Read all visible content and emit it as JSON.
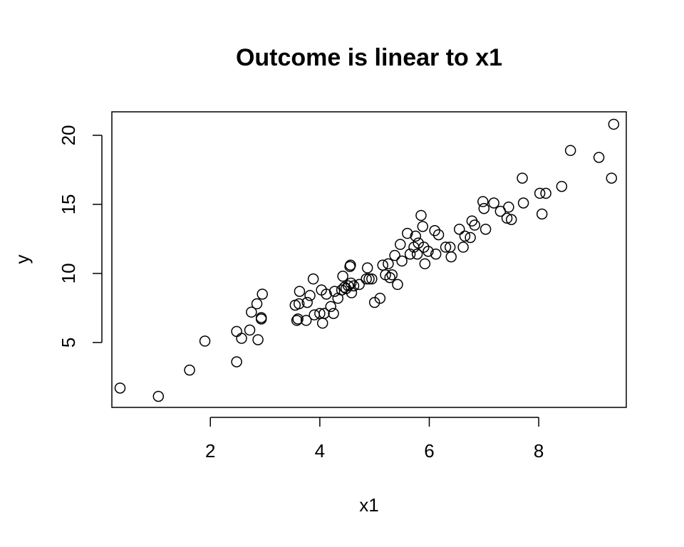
{
  "chart_data": {
    "type": "scatter",
    "title": "Outcome is linear to x1",
    "xlabel": "x1",
    "ylabel": "y",
    "xlim": [
      0.2,
      9.6
    ],
    "ylim": [
      0.3,
      21.7
    ],
    "xticks": [
      2,
      4,
      6,
      8
    ],
    "yticks": [
      5,
      10,
      15,
      20
    ],
    "marker": "open-circle",
    "grid": false,
    "points": [
      [
        0.35,
        1.7
      ],
      [
        1.05,
        1.1
      ],
      [
        1.62,
        3.0
      ],
      [
        1.9,
        5.1
      ],
      [
        2.48,
        5.8
      ],
      [
        2.48,
        3.6
      ],
      [
        2.57,
        5.3
      ],
      [
        2.72,
        5.9
      ],
      [
        2.75,
        7.2
      ],
      [
        2.85,
        7.8
      ],
      [
        2.87,
        5.2
      ],
      [
        2.93,
        6.7
      ],
      [
        2.93,
        6.8
      ],
      [
        2.95,
        8.5
      ],
      [
        3.55,
        7.7
      ],
      [
        3.58,
        6.6
      ],
      [
        3.6,
        6.7
      ],
      [
        3.62,
        7.8
      ],
      [
        3.63,
        8.7
      ],
      [
        3.75,
        6.6
      ],
      [
        3.77,
        7.9
      ],
      [
        3.82,
        8.4
      ],
      [
        3.88,
        9.6
      ],
      [
        3.9,
        7.0
      ],
      [
        4.0,
        7.1
      ],
      [
        4.03,
        8.8
      ],
      [
        4.05,
        6.4
      ],
      [
        4.08,
        7.1
      ],
      [
        4.12,
        8.5
      ],
      [
        4.2,
        7.6
      ],
      [
        4.25,
        7.1
      ],
      [
        4.27,
        8.7
      ],
      [
        4.33,
        8.2
      ],
      [
        4.4,
        8.8
      ],
      [
        4.42,
        9.8
      ],
      [
        4.45,
        9.0
      ],
      [
        4.48,
        8.9
      ],
      [
        4.52,
        9.1
      ],
      [
        4.55,
        10.5
      ],
      [
        4.56,
        10.6
      ],
      [
        4.57,
        9.3
      ],
      [
        4.58,
        8.6
      ],
      [
        4.62,
        9.1
      ],
      [
        4.72,
        9.2
      ],
      [
        4.85,
        9.6
      ],
      [
        4.87,
        10.4
      ],
      [
        4.9,
        9.6
      ],
      [
        4.95,
        9.6
      ],
      [
        5.0,
        7.9
      ],
      [
        5.1,
        8.2
      ],
      [
        5.15,
        10.6
      ],
      [
        5.2,
        9.9
      ],
      [
        5.25,
        10.7
      ],
      [
        5.28,
        9.7
      ],
      [
        5.32,
        9.9
      ],
      [
        5.37,
        11.3
      ],
      [
        5.42,
        9.2
      ],
      [
        5.47,
        12.1
      ],
      [
        5.5,
        10.9
      ],
      [
        5.6,
        12.9
      ],
      [
        5.65,
        11.4
      ],
      [
        5.72,
        11.9
      ],
      [
        5.75,
        12.7
      ],
      [
        5.78,
        11.4
      ],
      [
        5.8,
        12.2
      ],
      [
        5.85,
        14.2
      ],
      [
        5.88,
        13.4
      ],
      [
        5.9,
        11.9
      ],
      [
        5.92,
        10.7
      ],
      [
        5.98,
        11.6
      ],
      [
        6.1,
        13.1
      ],
      [
        6.12,
        11.4
      ],
      [
        6.17,
        12.8
      ],
      [
        6.3,
        11.9
      ],
      [
        6.38,
        11.9
      ],
      [
        6.4,
        11.2
      ],
      [
        6.55,
        13.2
      ],
      [
        6.62,
        11.9
      ],
      [
        6.65,
        12.7
      ],
      [
        6.75,
        12.6
      ],
      [
        6.78,
        13.8
      ],
      [
        6.83,
        13.5
      ],
      [
        6.98,
        15.2
      ],
      [
        7.0,
        14.7
      ],
      [
        7.03,
        13.2
      ],
      [
        7.18,
        15.1
      ],
      [
        7.3,
        14.5
      ],
      [
        7.42,
        14.0
      ],
      [
        7.45,
        14.8
      ],
      [
        7.5,
        13.9
      ],
      [
        7.7,
        16.9
      ],
      [
        7.72,
        15.1
      ],
      [
        8.02,
        15.8
      ],
      [
        8.06,
        14.3
      ],
      [
        8.13,
        15.8
      ],
      [
        8.42,
        16.3
      ],
      [
        8.58,
        18.9
      ],
      [
        9.1,
        18.4
      ],
      [
        9.33,
        16.9
      ],
      [
        9.37,
        20.8
      ]
    ]
  }
}
